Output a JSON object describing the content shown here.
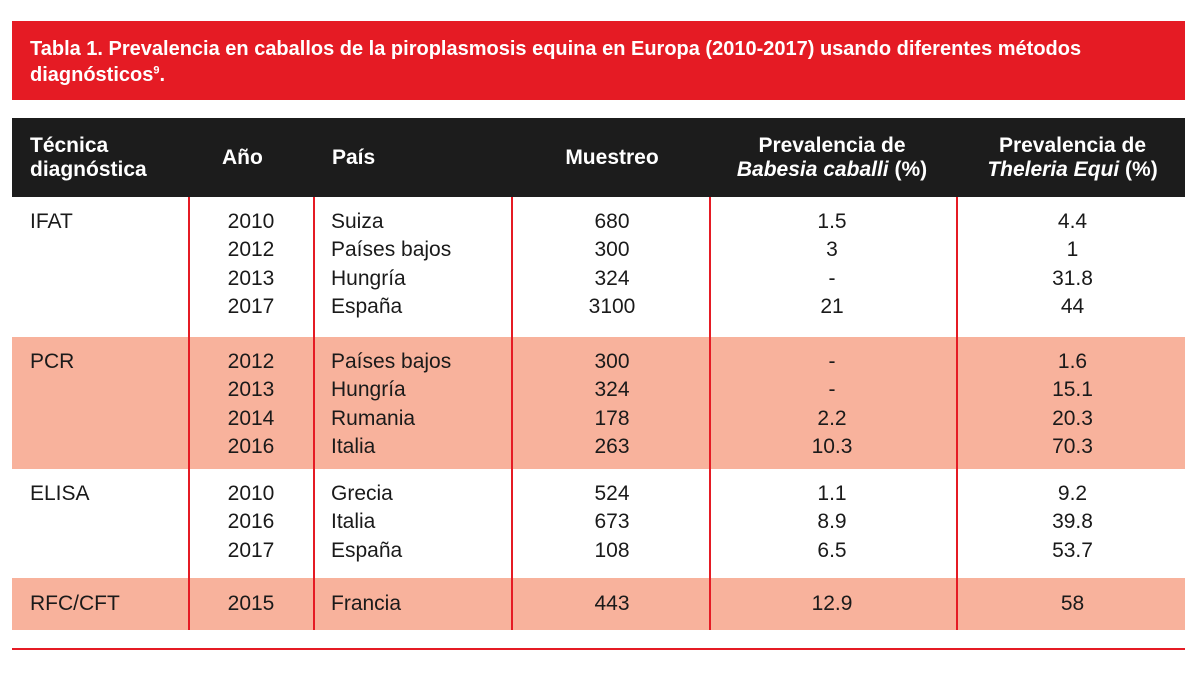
{
  "title": {
    "text": "Tabla 1. Prevalencia en caballos de la piroplasmosis equina en Europa (2010-2017) usando diferentes métodos diagnósticos",
    "superscript": "9",
    "end": "."
  },
  "colors": {
    "accent_red": "#e51b24",
    "header_bg": "#1c1c1c",
    "shaded_row": "#f8b29c"
  },
  "headers": {
    "tecnica_line1": "Técnica",
    "tecnica_line2": "diagnóstica",
    "ano": "Año",
    "pais": "País",
    "muestreo": "Muestreo",
    "babesia_line1": "Prevalencia de",
    "babesia_italic": "Babesia caballi",
    "babesia_unit": " (%)",
    "theleria_line1": "Prevalencia de",
    "theleria_italic": "Theleria Equi",
    "theleria_unit": " (%)"
  },
  "groups": [
    {
      "tecnica": "IFAT",
      "rows": [
        {
          "ano": "2010",
          "pais": "Suiza",
          "muestreo": "680",
          "babesia": "1.5",
          "theleria": "4.4"
        },
        {
          "ano": "2012",
          "pais": "Países bajos",
          "muestreo": "300",
          "babesia": "3",
          "theleria": "1"
        },
        {
          "ano": "2013",
          "pais": "Hungría",
          "muestreo": "324",
          "babesia": "-",
          "theleria": "31.8"
        },
        {
          "ano": "2017",
          "pais": "España",
          "muestreo": "3100",
          "babesia": "21",
          "theleria": "44"
        }
      ]
    },
    {
      "tecnica": "PCR",
      "rows": [
        {
          "ano": "2012",
          "pais": "Países bajos",
          "muestreo": "300",
          "babesia": "-",
          "theleria": "1.6"
        },
        {
          "ano": "2013",
          "pais": "Hungría",
          "muestreo": "324",
          "babesia": "-",
          "theleria": "15.1"
        },
        {
          "ano": "2014",
          "pais": "Rumania",
          "muestreo": "178",
          "babesia": "2.2",
          "theleria": "20.3"
        },
        {
          "ano": "2016",
          "pais": "Italia",
          "muestreo": "263",
          "babesia": "10.3",
          "theleria": "70.3"
        }
      ]
    },
    {
      "tecnica": "ELISA",
      "rows": [
        {
          "ano": "2010",
          "pais": "Grecia",
          "muestreo": "524",
          "babesia": "1.1",
          "theleria": "9.2"
        },
        {
          "ano": "2016",
          "pais": "Italia",
          "muestreo": "673",
          "babesia": "8.9",
          "theleria": "39.8"
        },
        {
          "ano": "2017",
          "pais": "España",
          "muestreo": "108",
          "babesia": "6.5",
          "theleria": "53.7"
        }
      ]
    },
    {
      "tecnica": "RFC/CFT",
      "rows": [
        {
          "ano": "2015",
          "pais": "Francia",
          "muestreo": "443",
          "babesia": "12.9",
          "theleria": "58"
        }
      ]
    }
  ]
}
